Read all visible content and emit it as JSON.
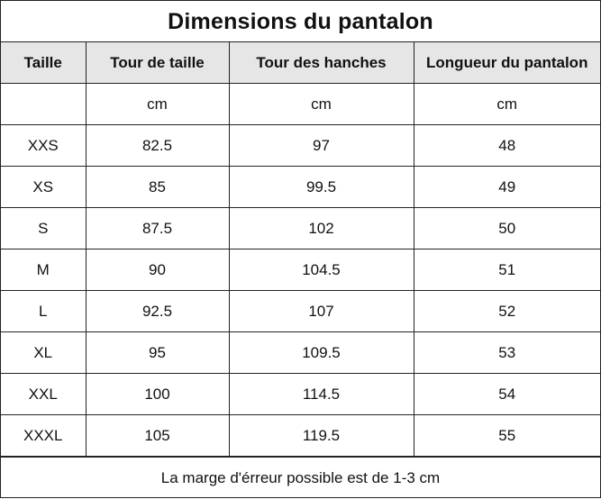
{
  "title": "Dimensions du pantalon",
  "columns": [
    "Taille",
    "Tour de taille",
    "Tour des hanches",
    "Longueur du pantalon"
  ],
  "units": [
    "",
    "cm",
    "cm",
    "cm"
  ],
  "rows": [
    [
      "XXS",
      "82.5",
      "97",
      "48"
    ],
    [
      "XS",
      "85",
      "99.5",
      "49"
    ],
    [
      "S",
      "87.5",
      "102",
      "50"
    ],
    [
      "M",
      "90",
      "104.5",
      "51"
    ],
    [
      "L",
      "92.5",
      "107",
      "52"
    ],
    [
      "XL",
      "95",
      "109.5",
      "53"
    ],
    [
      "XXL",
      "100",
      "114.5",
      "54"
    ],
    [
      "XXXL",
      "105",
      "119.5",
      "55"
    ]
  ],
  "footer": "La marge d'érreur possible est de 1-3 cm"
}
